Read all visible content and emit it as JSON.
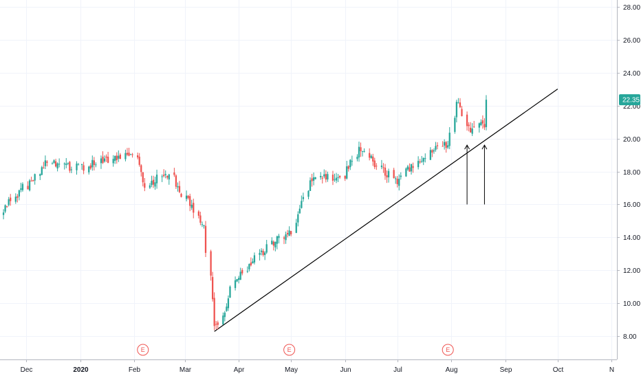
{
  "chart_data": {
    "type": "candlestick",
    "y_axis": {
      "position": "right",
      "ylim": [
        6.6,
        28.4
      ],
      "ticks": [
        "8.00",
        "10.00",
        "12.00",
        "14.00",
        "16.00",
        "18.00",
        "20.00",
        "22.00",
        "24.00",
        "26.00",
        "28.00"
      ],
      "grid": true
    },
    "x_axis": {
      "labels": [
        "Dec",
        "2020",
        "Feb",
        "Mar",
        "Apr",
        "May",
        "Jun",
        "Jul",
        "Aug",
        "Sep",
        "Oct",
        "N"
      ],
      "label_dates": [
        "2019-12-01",
        "2020-01-01",
        "2020-02-01",
        "2020-03-01",
        "2020-04-01",
        "2020-05-01",
        "2020-06-01",
        "2020-07-01",
        "2020-08-01",
        "2020-09-01",
        "2020-10-01",
        "2020-11-01"
      ],
      "major_labels": [
        "2020"
      ],
      "range": [
        "2019-11-16",
        "2020-11-04"
      ],
      "grid": true
    },
    "last_price": {
      "value": 22.35,
      "label": "22.35",
      "color": "#26a69a"
    },
    "earnings_markers": [
      {
        "date": "2020-02-06",
        "label": "E"
      },
      {
        "date": "2020-04-30",
        "label": "E"
      },
      {
        "date": "2020-07-30",
        "label": "E"
      }
    ],
    "trendline": {
      "start": {
        "date": "2020-03-18",
        "value": 8.3
      },
      "end": {
        "date": "2020-10-01",
        "value": 23.0
      },
      "color": "#000000"
    },
    "arrows": [
      {
        "date": "2020-08-10",
        "from": 16.0,
        "to": 19.6
      },
      {
        "date": "2020-08-20",
        "from": 16.0,
        "to": 19.6
      }
    ],
    "colors": {
      "up": "#26a69a",
      "down": "#ef5350",
      "grid": "#f0f3fa"
    },
    "segments": [
      {
        "start": "2019-11-18",
        "end": "2019-11-29",
        "from": 15.6,
        "to": 17.1
      },
      {
        "start": "2019-12-02",
        "end": "2019-12-11",
        "from": 17.1,
        "to": 18.5
      },
      {
        "start": "2019-12-12",
        "end": "2019-12-31",
        "from": 18.5,
        "to": 18.2
      },
      {
        "start": "2020-01-02",
        "end": "2020-01-16",
        "from": 18.2,
        "to": 18.8
      },
      {
        "start": "2020-01-17",
        "end": "2020-01-31",
        "from": 18.8,
        "to": 19.1
      },
      {
        "start": "2020-02-03",
        "end": "2020-02-06",
        "from": 19.1,
        "to": 17.2
      },
      {
        "start": "2020-02-07",
        "end": "2020-02-20",
        "from": 17.2,
        "to": 17.8
      },
      {
        "start": "2020-02-21",
        "end": "2020-03-11",
        "from": 17.8,
        "to": 14.8
      },
      {
        "start": "2020-03-12",
        "end": "2020-03-18",
        "from": 14.8,
        "to": 8.5
      },
      {
        "start": "2020-03-19",
        "end": "2020-03-31",
        "from": 8.5,
        "to": 11.6
      },
      {
        "start": "2020-04-01",
        "end": "2020-04-14",
        "from": 11.6,
        "to": 13.2
      },
      {
        "start": "2020-04-15",
        "end": "2020-04-30",
        "from": 13.2,
        "to": 14.4
      },
      {
        "start": "2020-05-01",
        "end": "2020-05-12",
        "from": 14.4,
        "to": 17.5
      },
      {
        "start": "2020-05-13",
        "end": "2020-05-29",
        "from": 17.5,
        "to": 17.8
      },
      {
        "start": "2020-06-01",
        "end": "2020-06-09",
        "from": 17.8,
        "to": 19.3
      },
      {
        "start": "2020-06-10",
        "end": "2020-06-30",
        "from": 19.3,
        "to": 17.5
      },
      {
        "start": "2020-07-01",
        "end": "2020-07-15",
        "from": 17.5,
        "to": 18.9
      },
      {
        "start": "2020-07-16",
        "end": "2020-07-29",
        "from": 18.9,
        "to": 19.6
      },
      {
        "start": "2020-07-30",
        "end": "2020-08-04",
        "from": 19.6,
        "to": 22.3
      },
      {
        "start": "2020-08-05",
        "end": "2020-08-11",
        "from": 22.3,
        "to": 20.6
      },
      {
        "start": "2020-08-12",
        "end": "2020-08-19",
        "from": 20.6,
        "to": 20.8
      },
      {
        "start": "2020-08-20",
        "end": "2020-08-21",
        "from": 20.8,
        "to": 22.35
      }
    ]
  }
}
